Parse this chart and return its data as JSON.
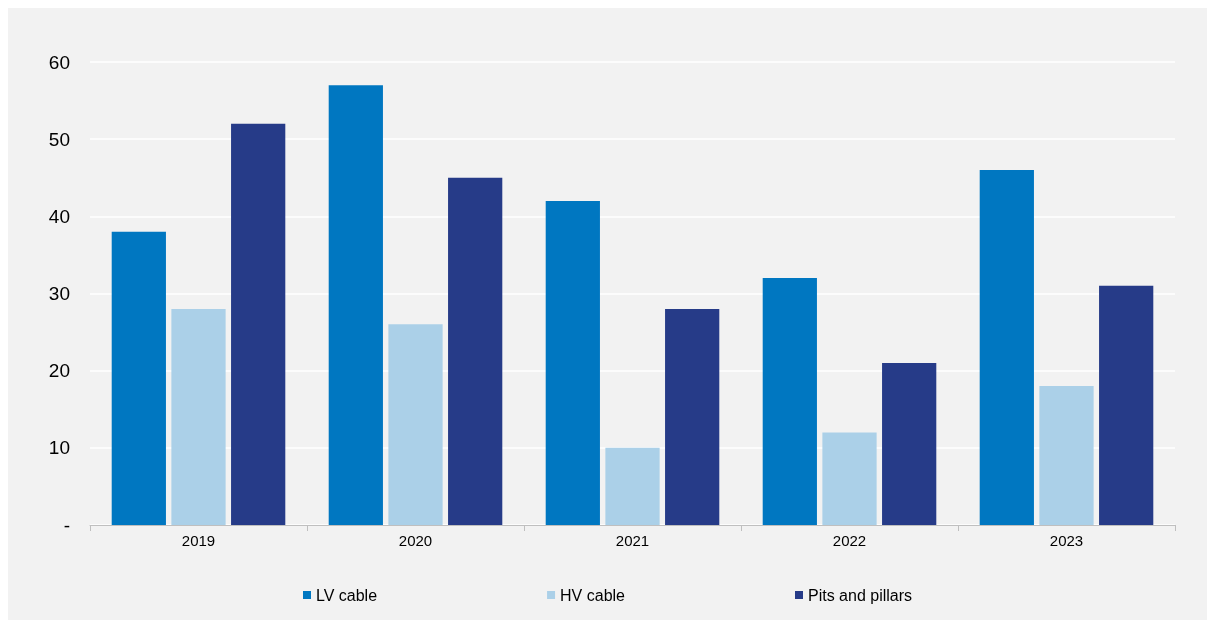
{
  "chart_data": {
    "type": "bar",
    "categories": [
      "2019",
      "2020",
      "2021",
      "2022",
      "2023"
    ],
    "series": [
      {
        "name": "LV cable",
        "color": "#0077c1",
        "values": [
          38,
          57,
          42,
          32,
          46
        ]
      },
      {
        "name": "HV cable",
        "color": "#abd0e8",
        "values": [
          28,
          26,
          10,
          12,
          18
        ]
      },
      {
        "name": "Pits and pillars",
        "color": "#263b88",
        "values": [
          52,
          45,
          28,
          21,
          31
        ]
      }
    ],
    "ylim": [
      0,
      60
    ],
    "yticks": [
      {
        "value": 0,
        "label": "-"
      },
      10,
      20,
      30,
      40,
      50,
      60
    ],
    "grid": "y",
    "legend": "bottom"
  }
}
